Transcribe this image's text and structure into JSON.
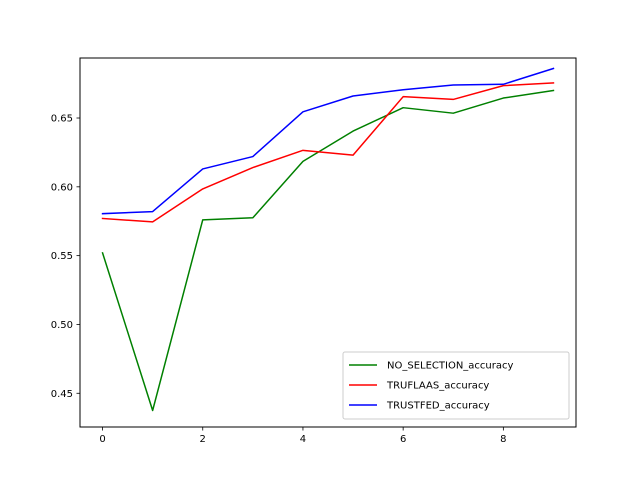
{
  "chart_data": {
    "type": "line",
    "title": "",
    "xlabel": "",
    "ylabel": "",
    "x": [
      0,
      1,
      2,
      3,
      4,
      5,
      6,
      7,
      8,
      9
    ],
    "xlim": [
      -0.45,
      9.45
    ],
    "ylim": [
      0.4255,
      0.6936
    ],
    "x_ticks": [
      0,
      2,
      4,
      6,
      8
    ],
    "y_ticks": [
      0.45,
      0.5,
      0.55,
      0.6,
      0.65
    ],
    "y_tick_labels": [
      "0.45",
      "0.50",
      "0.55",
      "0.60",
      "0.65"
    ],
    "grid": false,
    "legend_position": "lower-right",
    "series": [
      {
        "name": "NO_SELECTION_accuracy",
        "color": "#008000",
        "values": [
          0.552,
          0.4375,
          0.576,
          0.5775,
          0.6185,
          0.6405,
          0.6575,
          0.6535,
          0.6645,
          0.67
        ]
      },
      {
        "name": "TRUFLAAS_accuracy",
        "color": "#ff0000",
        "values": [
          0.577,
          0.5745,
          0.5985,
          0.614,
          0.6265,
          0.623,
          0.6655,
          0.6635,
          0.6735,
          0.6755
        ]
      },
      {
        "name": "TRUSTFED_accuracy",
        "color": "#0000ff",
        "values": [
          0.5805,
          0.582,
          0.613,
          0.622,
          0.6545,
          0.666,
          0.6705,
          0.674,
          0.6745,
          0.686
        ]
      }
    ]
  }
}
